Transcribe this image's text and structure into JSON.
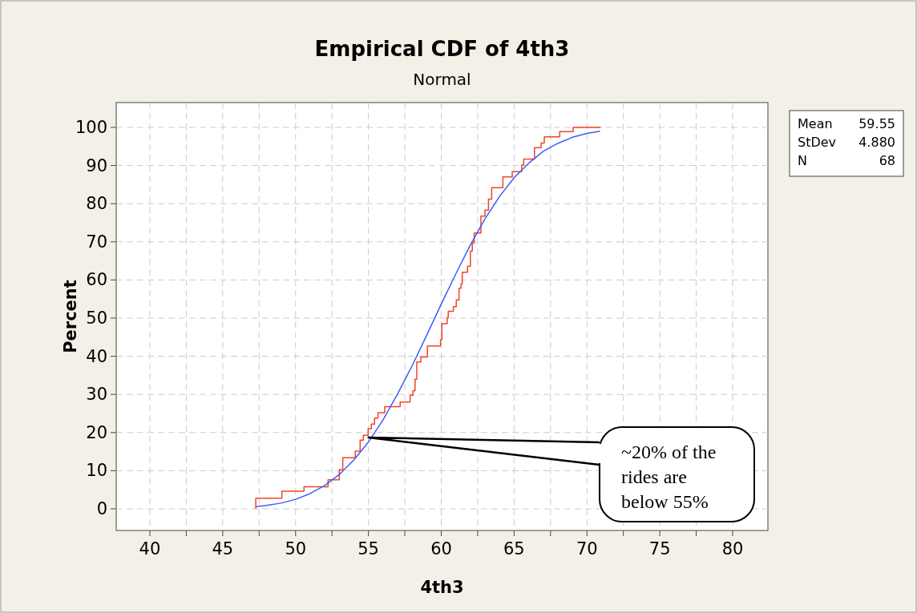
{
  "chart_data": {
    "type": "step",
    "title": "Empirical CDF of 4th3",
    "subtitle": "Normal",
    "xlabel": "4th3",
    "ylabel": "Percent",
    "xlim": [
      37.69,
      82.42
    ],
    "ylim": [
      -5.67,
      106.5
    ],
    "xticks": [
      40,
      {
        "value": 42.5,
        "label": null
      },
      45,
      {
        "value": 47.5,
        "label": null
      },
      50,
      {
        "value": 52.5,
        "label": null
      },
      55,
      {
        "value": 57.5,
        "label": null
      },
      60,
      {
        "value": 62.5,
        "label": null
      },
      65,
      {
        "value": 67.5,
        "label": null
      },
      70,
      {
        "value": 72.5,
        "label": null
      },
      75,
      {
        "value": 77.5,
        "label": null
      },
      80
    ],
    "yticks": [
      0,
      10,
      20,
      30,
      40,
      50,
      60,
      70,
      80,
      90,
      100
    ],
    "grid": true,
    "line_style": "solid",
    "series": [
      {
        "type": "step",
        "color": "#f0452a",
        "x": [
          47.27,
          47.27,
          49.06,
          50.58,
          52.23,
          53.0,
          53.24,
          54.1,
          54.43,
          54.65,
          54.98,
          55.2,
          55.42,
          55.66,
          56.12,
          57.18,
          57.86,
          58.06,
          58.2,
          58.32,
          58.6,
          59.05,
          59.95,
          60.04,
          60.4,
          60.48,
          60.83,
          61.03,
          61.22,
          61.35,
          61.44,
          61.8,
          62.0,
          62.13,
          62.26,
          62.72,
          63.0,
          63.24,
          63.46,
          64.23,
          64.87,
          65.52,
          65.66,
          66.4,
          66.85,
          67.07,
          68.13,
          69.05,
          70.94
        ],
        "values": [
          0,
          2.8,
          4.6,
          5.8,
          7.6,
          10.3,
          13.4,
          15.1,
          18,
          19.3,
          21,
          22.2,
          23.8,
          25.2,
          26.8,
          28,
          29.8,
          31,
          34,
          38.5,
          39.8,
          42.7,
          44.3,
          48.5,
          50.1,
          51.8,
          53,
          54.8,
          57.8,
          59,
          62,
          63.6,
          67.6,
          69.7,
          72.3,
          76.7,
          78.3,
          81.2,
          84.2,
          87,
          88.4,
          90.1,
          91.7,
          94.7,
          95.9,
          97.5,
          98.9,
          100,
          100
        ]
      },
      {
        "type": "line",
        "color": "#3c5cff",
        "x": [
          47.3,
          48,
          49,
          50,
          51,
          52,
          53,
          54,
          55,
          56,
          57,
          58,
          59,
          60,
          61,
          62,
          63,
          64,
          65,
          66,
          67,
          68,
          69,
          70,
          70.9
        ],
        "values": [
          0.6,
          0.9,
          1.5,
          2.5,
          4.0,
          6.1,
          9.0,
          12.8,
          17.5,
          23.3,
          30.1,
          37.5,
          45.5,
          53.7,
          61.6,
          69.2,
          76.0,
          81.9,
          86.8,
          90.6,
          93.7,
          95.8,
          97.4,
          98.4,
          99.0
        ]
      }
    ],
    "annotations": [
      {
        "text": "~20% of the rides are below 55%",
        "x": 55,
        "y": 18.7
      },
      "Mean 59.55",
      "StDev 4.880",
      "N 68"
    ]
  }
}
